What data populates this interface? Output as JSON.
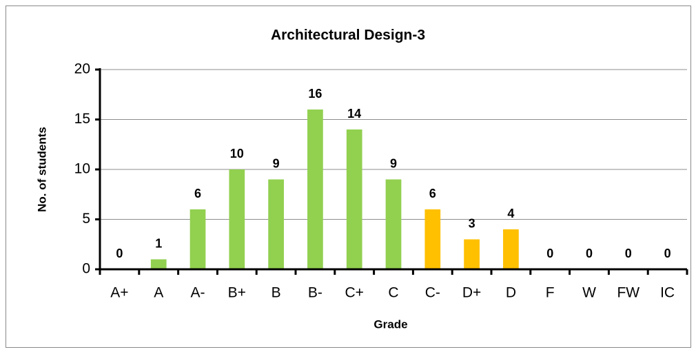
{
  "chart_data": {
    "type": "bar",
    "title": "Architectural Design-3",
    "x_label": "Grade",
    "y_label": "No. of students",
    "categories": [
      "A+",
      "A",
      "A-",
      "B+",
      "B",
      "B-",
      "C+",
      "C",
      "C-",
      "D+",
      "D",
      "F",
      "W",
      "FW",
      "IC"
    ],
    "values": [
      0,
      1,
      6,
      10,
      9,
      16,
      14,
      9,
      6,
      3,
      4,
      0,
      0,
      0,
      0
    ],
    "colors": [
      "#92d050",
      "#92d050",
      "#92d050",
      "#92d050",
      "#92d050",
      "#92d050",
      "#92d050",
      "#92d050",
      "#ffc000",
      "#ffc000",
      "#ffc000",
      "#ffc000",
      "#ffc000",
      "#ffc000",
      "#ffc000"
    ],
    "ylim": [
      0,
      20
    ],
    "yticks": [
      0,
      5,
      10,
      15,
      20
    ],
    "grid": true
  }
}
